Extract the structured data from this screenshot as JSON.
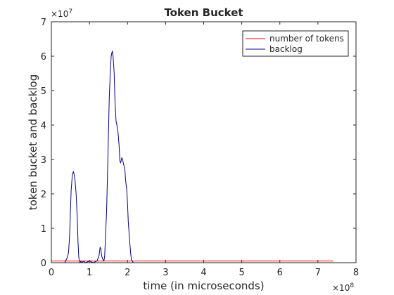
{
  "chart_data": {
    "type": "line",
    "title": "Token Bucket",
    "xlabel": "time (in microseconds)",
    "ylabel": "token bucket and backlog",
    "xlim": [
      0,
      8
    ],
    "ylim": [
      0,
      7
    ],
    "x_multiplier": "×10",
    "x_exponent": "8",
    "y_multiplier": "×10",
    "y_exponent": "7",
    "x_ticks": [
      0,
      1,
      2,
      3,
      4,
      5,
      6,
      7,
      8
    ],
    "y_ticks": [
      0,
      1,
      2,
      3,
      4,
      5,
      6,
      7
    ],
    "legend_position": "top-right",
    "series": [
      {
        "name": "number of tokens",
        "color": "#ff0000",
        "x": [
          0.0,
          0.5,
          1.0,
          1.3,
          1.6,
          1.9,
          2.1,
          2.2,
          2.5,
          3.0,
          4.0,
          5.0,
          6.0,
          7.0,
          7.4
        ],
        "y": [
          0.05,
          0.05,
          0.05,
          0.05,
          0.05,
          0.05,
          0.05,
          0.05,
          0.05,
          0.05,
          0.05,
          0.05,
          0.05,
          0.05,
          0.05
        ]
      },
      {
        "name": "backlog",
        "color": "#00008b",
        "x": [
          0.0,
          0.35,
          0.42,
          0.45,
          0.48,
          0.5,
          0.52,
          0.55,
          0.58,
          0.6,
          0.62,
          0.65,
          0.68,
          0.7,
          0.72,
          0.75,
          0.78,
          0.8,
          0.85,
          0.9,
          1.0,
          1.1,
          1.2,
          1.25,
          1.28,
          1.3,
          1.32,
          1.35,
          1.38,
          1.4,
          1.45,
          1.48,
          1.5,
          1.52,
          1.55,
          1.57,
          1.6,
          1.62,
          1.65,
          1.67,
          1.7,
          1.72,
          1.75,
          1.78,
          1.8,
          1.82,
          1.85,
          1.87,
          1.9,
          1.93,
          1.95,
          1.98,
          2.0,
          2.02,
          2.05,
          2.08,
          2.1,
          2.15,
          2.3,
          3.0,
          4.0,
          5.0,
          6.0,
          7.0,
          7.4
        ],
        "y": [
          0.0,
          0.0,
          0.15,
          0.3,
          0.8,
          1.5,
          2.1,
          2.55,
          2.65,
          2.55,
          2.4,
          2.0,
          1.3,
          0.6,
          0.15,
          0.0,
          0.05,
          0.0,
          0.05,
          0.0,
          0.05,
          0.0,
          0.05,
          0.2,
          0.45,
          0.4,
          0.2,
          0.1,
          0.05,
          0.2,
          1.5,
          2.8,
          3.8,
          4.8,
          5.6,
          6.0,
          6.15,
          6.0,
          5.5,
          4.7,
          4.1,
          4.0,
          3.8,
          3.4,
          2.95,
          2.9,
          3.05,
          3.0,
          2.85,
          2.7,
          2.4,
          2.1,
          1.7,
          1.2,
          0.7,
          0.3,
          0.1,
          0.0,
          0.0,
          0.0,
          0.0,
          0.0,
          0.0,
          0.0,
          0.0
        ]
      }
    ]
  }
}
